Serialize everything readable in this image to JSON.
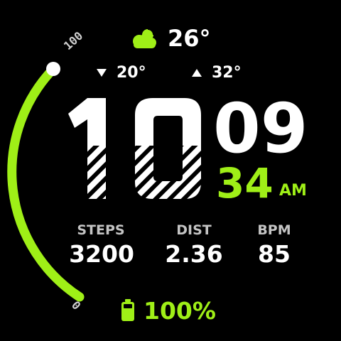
{
  "colors": {
    "accent": "#9fef17",
    "text": "#ffffff",
    "label": "#c4c4c4",
    "background": "#000000"
  },
  "weather": {
    "icon": "cloud-sun-icon",
    "temperature": "26°"
  },
  "forecast": {
    "min_icon": "triangle-down-icon",
    "min": "20°",
    "max_icon": "triangle-up-icon",
    "max": "32°"
  },
  "time": {
    "hour_digit_1": "1",
    "hour_digit_2": "0",
    "hour_tens_minute": "09",
    "minutes": "34",
    "ampm": "AM"
  },
  "stats": {
    "steps_label": "STEPS",
    "steps_value": "3200",
    "dist_label": "DIST",
    "dist_value": "2.36",
    "bpm_label": "BPM",
    "bpm_value": "85"
  },
  "battery": {
    "icon": "battery-icon",
    "level": "100%"
  },
  "gauge": {
    "max_label": "100",
    "min_label": "0",
    "value": 100
  }
}
